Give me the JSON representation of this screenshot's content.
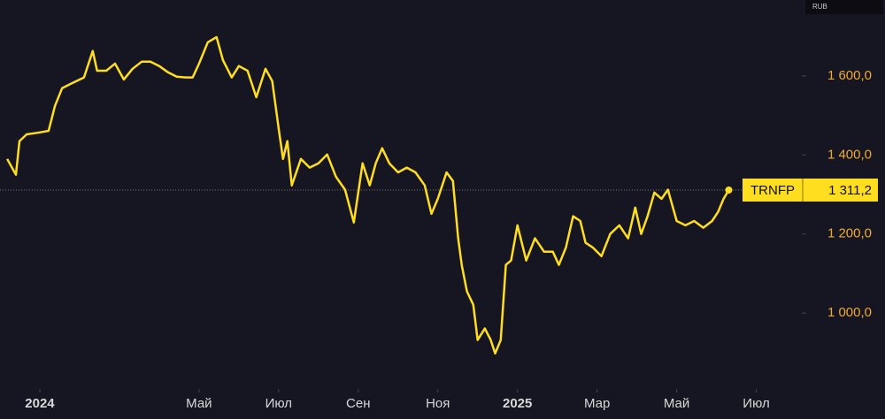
{
  "chart_data": {
    "type": "line",
    "currency": "RUB",
    "x": [
      -0.82,
      -0.6,
      -0.51,
      -0.33,
      0,
      0.22,
      0.38,
      0.56,
      0.78,
      1.11,
      1.33,
      1.44,
      1.67,
      1.89,
      2.11,
      2.33,
      2.56,
      2.78,
      3,
      3.22,
      3.44,
      3.67,
      3.84,
      4,
      4.22,
      4.44,
      4.6,
      4.82,
      5,
      5.22,
      5.44,
      5.67,
      5.84,
      6,
      6.11,
      6.22,
      6.33,
      6.56,
      6.78,
      7,
      7.22,
      7.44,
      7.67,
      7.89,
      8.11,
      8.29,
      8.44,
      8.6,
      8.78,
      9,
      9.22,
      9.44,
      9.67,
      9.84,
      10,
      10.22,
      10.38,
      10.51,
      10.6,
      10.73,
      10.89,
      11,
      11.18,
      11.33,
      11.44,
      11.58,
      11.71,
      11.84,
      12,
      12.22,
      12.44,
      12.67,
      12.89,
      13.04,
      13.22,
      13.4,
      13.58,
      13.71,
      13.89,
      14.11,
      14.33,
      14.56,
      14.78,
      14.96,
      15.11,
      15.27,
      15.44,
      15.62,
      15.78,
      16,
      16.22,
      16.44,
      16.67,
      16.89,
      17.04,
      17.18,
      17.31
    ],
    "series": [
      {
        "name": "TRNFP",
        "color": "#ffdd1f",
        "values": [
          1390,
          1350,
          1435,
          1452,
          1457,
          1461,
          1524,
          1569,
          1580,
          1596,
          1663,
          1613,
          1613,
          1631,
          1591,
          1618,
          1636,
          1636,
          1625,
          1609,
          1598,
          1596,
          1596,
          1631,
          1685,
          1698,
          1640,
          1596,
          1625,
          1613,
          1546,
          1618,
          1587,
          1468,
          1390,
          1435,
          1323,
          1390,
          1368,
          1379,
          1401,
          1345,
          1312,
          1229,
          1379,
          1323,
          1379,
          1417,
          1379,
          1356,
          1368,
          1356,
          1323,
          1251,
          1289,
          1356,
          1334,
          1189,
          1122,
          1055,
          1021,
          932,
          961,
          932,
          898,
          932,
          1122,
          1133,
          1222,
          1133,
          1189,
          1155,
          1155,
          1122,
          1166,
          1245,
          1233,
          1178,
          1166,
          1144,
          1200,
          1222,
          1189,
          1267,
          1200,
          1245,
          1305,
          1289,
          1312,
          1233,
          1222,
          1233,
          1216,
          1233,
          1256,
          1289,
          1311.2
        ],
        "last_value_label": "1 311,2"
      }
    ],
    "xlim": [
      -1,
      19.1
    ],
    "xticks": [
      {
        "value": 0,
        "label": "2024"
      },
      {
        "value": 4,
        "label": "Май"
      },
      {
        "value": 6,
        "label": "Июл"
      },
      {
        "value": 8,
        "label": "Сен"
      },
      {
        "value": 10,
        "label": "Ноя"
      },
      {
        "value": 12,
        "label": "2025"
      },
      {
        "value": 14,
        "label": "Мар"
      },
      {
        "value": 16,
        "label": "Май"
      },
      {
        "value": 18,
        "label": "Июл"
      }
    ],
    "ylim": [
      808,
      1792
    ],
    "yticks": [
      {
        "value": 1000,
        "label": "1 000,0"
      },
      {
        "value": 1200,
        "label": "1 200,0"
      },
      {
        "value": 1400,
        "label": "1 400,0"
      },
      {
        "value": 1600,
        "label": "1 600,0"
      }
    ],
    "grid": false
  }
}
